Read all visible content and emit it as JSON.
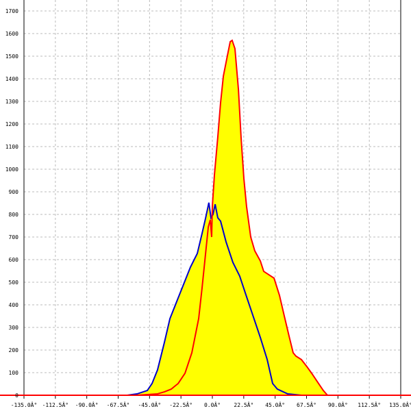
{
  "chart_data": {
    "type": "area",
    "title": "",
    "xlabel": "",
    "ylabel": "",
    "xlim": [
      -135,
      135
    ],
    "ylim": [
      0,
      1700
    ],
    "grid": true,
    "x_tick_labels": [
      "-135.0Â°",
      "-112.5Â°",
      "-90.0Â°",
      "-67.5Â°",
      "-45.0Â°",
      "-22.5Â°",
      "0.0Â°",
      "22.5Â°",
      "45.0Â°",
      "67.5Â°",
      "90.0Â°",
      "112.5Â°",
      "135.0Â°"
    ],
    "x_ticks": [
      -135,
      -112.5,
      -90,
      -67.5,
      -45,
      -22.5,
      0,
      22.5,
      45,
      67.5,
      90,
      112.5,
      135
    ],
    "y_ticks": [
      0,
      100,
      200,
      300,
      400,
      500,
      600,
      700,
      800,
      900,
      1000,
      1100,
      1200,
      1300,
      1400,
      1500,
      1600,
      1700
    ],
    "fill_color": "#ffff00",
    "series": [
      {
        "color": "#0000cc",
        "points": [
          [
            -61,
            0
          ],
          [
            -54,
            6
          ],
          [
            -46.6,
            21
          ],
          [
            -43.2,
            52
          ],
          [
            -39.3,
            112
          ],
          [
            -34.4,
            233
          ],
          [
            -30.4,
            339
          ],
          [
            -25.5,
            415
          ],
          [
            -20.6,
            491
          ],
          [
            -15.7,
            567
          ],
          [
            -10.8,
            627
          ],
          [
            -7.4,
            715
          ],
          [
            -4.9,
            782
          ],
          [
            -2.5,
            852
          ],
          [
            -1,
            785
          ],
          [
            0.5,
            800
          ],
          [
            2,
            845
          ],
          [
            3.9,
            785
          ],
          [
            5.9,
            770
          ],
          [
            9.8,
            679
          ],
          [
            14.7,
            588
          ],
          [
            19.6,
            527
          ],
          [
            24.5,
            436
          ],
          [
            29.5,
            345
          ],
          [
            34.4,
            255
          ],
          [
            39.3,
            158
          ],
          [
            43.2,
            52
          ],
          [
            46.6,
            27
          ],
          [
            54,
            6
          ],
          [
            63.8,
            0
          ]
        ]
      },
      {
        "color": "#ff0000",
        "points": [
          [
            -54,
            0
          ],
          [
            -46.6,
            3
          ],
          [
            -39.3,
            6
          ],
          [
            -34.4,
            15
          ],
          [
            -29.5,
            27
          ],
          [
            -24.5,
            52
          ],
          [
            -19.6,
            97
          ],
          [
            -14.7,
            188
          ],
          [
            -9.8,
            339
          ],
          [
            -7.4,
            473
          ],
          [
            -4.9,
            624
          ],
          [
            -2.9,
            745
          ],
          [
            -1.5,
            776
          ],
          [
            -0.5,
            700
          ],
          [
            0,
            836
          ],
          [
            1.5,
            976
          ],
          [
            3.9,
            1142
          ],
          [
            5.9,
            1294
          ],
          [
            7.9,
            1412
          ],
          [
            10.8,
            1503
          ],
          [
            12.8,
            1564
          ],
          [
            14.2,
            1570
          ],
          [
            16.2,
            1533
          ],
          [
            18.7,
            1352
          ],
          [
            20.6,
            1139
          ],
          [
            22.6,
            958
          ],
          [
            24.5,
            836
          ],
          [
            27.5,
            700
          ],
          [
            30.4,
            639
          ],
          [
            34.4,
            594
          ],
          [
            36.8,
            548
          ],
          [
            44.2,
            518
          ],
          [
            48.1,
            442
          ],
          [
            51.5,
            352
          ],
          [
            55,
            261
          ],
          [
            57.9,
            188
          ],
          [
            59.9,
            173
          ],
          [
            63.8,
            158
          ],
          [
            67.7,
            127
          ],
          [
            71.2,
            97
          ],
          [
            76.1,
            52
          ],
          [
            79.5,
            21
          ],
          [
            82.5,
            0
          ]
        ]
      }
    ]
  }
}
